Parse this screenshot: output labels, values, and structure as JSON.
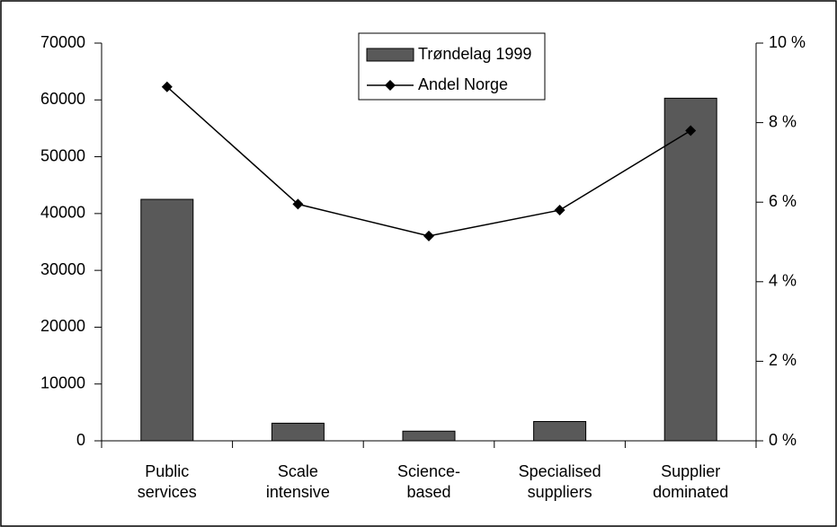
{
  "chart_data": {
    "type": "bar-line",
    "categories": [
      "Public services",
      "Scale intensive",
      "Science-based",
      "Specialised suppliers",
      "Supplier dominated"
    ],
    "series": [
      {
        "name": "Trøndelag 1999",
        "type": "bar",
        "color": "#595959",
        "values": [
          42500,
          3100,
          1700,
          3400,
          60300
        ]
      },
      {
        "name": "Andel Norge",
        "type": "line",
        "color": "#000000",
        "axis": "y2",
        "values": [
          8.9,
          5.95,
          5.15,
          5.8,
          7.8
        ]
      }
    ],
    "ylim": [
      0,
      70000
    ],
    "yticks": [
      0,
      10000,
      20000,
      30000,
      40000,
      50000,
      60000,
      70000
    ],
    "y2lim": [
      0,
      10
    ],
    "y2ticks": [
      {
        "value": 0,
        "label": "0 %"
      },
      {
        "value": 2,
        "label": "2 %"
      },
      {
        "value": 4,
        "label": "4 %"
      },
      {
        "value": 6,
        "label": "6 %"
      },
      {
        "value": 8,
        "label": "8 %"
      },
      {
        "value": 10,
        "label": "10 %"
      }
    ],
    "grid": false,
    "legend": "top"
  }
}
